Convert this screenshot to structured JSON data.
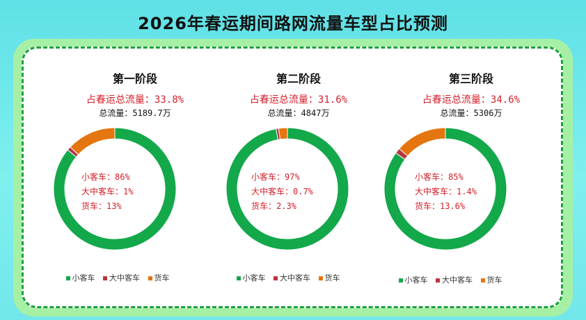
{
  "title": "2026年春运期间路网流量车型占比预测",
  "colors": {
    "small": "#13a84a",
    "medium": "#b7363f",
    "truck": "#e4750f"
  },
  "legend": [
    "小客车",
    "大中客车",
    "货车"
  ],
  "stages": [
    {
      "name": "第一阶段",
      "share_text": "占春运总流量：33.8%",
      "total_text": "总流量：5189.7万",
      "labels": [
        "小客车：86%",
        "大中客车：1%",
        "货车：13%"
      ]
    },
    {
      "name": "第二阶段",
      "share_text": "占春运总流量：31.6%",
      "total_text": "总流量：4847万",
      "labels": [
        "小客车：97%",
        "大中客车：0.7%",
        "货车：2.3%"
      ]
    },
    {
      "name": "第三阶段",
      "share_text": "占春运总流量：34.6%",
      "total_text": "总流量：5306万",
      "labels": [
        "小客车：85%",
        "大中客车：1.4%",
        "货车：13.6%"
      ]
    }
  ],
  "chart_data": [
    {
      "type": "pie",
      "title": "第一阶段",
      "categories": [
        "小客车",
        "大中客车",
        "货车"
      ],
      "values": [
        86,
        1,
        13
      ]
    },
    {
      "type": "pie",
      "title": "第二阶段",
      "categories": [
        "小客车",
        "大中客车",
        "货车"
      ],
      "values": [
        97,
        0.7,
        2.3
      ]
    },
    {
      "type": "pie",
      "title": "第三阶段",
      "categories": [
        "小客车",
        "大中客车",
        "货车"
      ],
      "values": [
        85,
        1.4,
        13.6
      ]
    }
  ]
}
